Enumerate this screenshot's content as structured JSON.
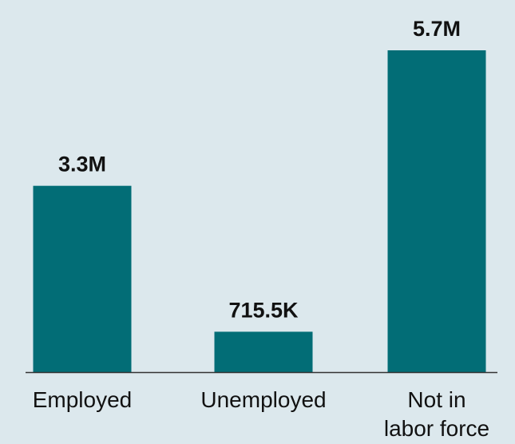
{
  "colors": {
    "background": "#dce8ed",
    "bar": "#026d76",
    "axis": "#333333",
    "text": "#111111"
  },
  "chart_data": {
    "type": "bar",
    "categories": [
      [
        "Employed"
      ],
      [
        "Unemployed"
      ],
      [
        "Not in",
        "labor force"
      ]
    ],
    "values": [
      3300000,
      715500,
      5700000
    ],
    "value_labels": [
      "3.3M",
      "715.5K",
      "5.7M"
    ],
    "title": "",
    "xlabel": "",
    "ylabel": "",
    "ylim": [
      0,
      5700000
    ],
    "grid": false,
    "legend": "none"
  }
}
